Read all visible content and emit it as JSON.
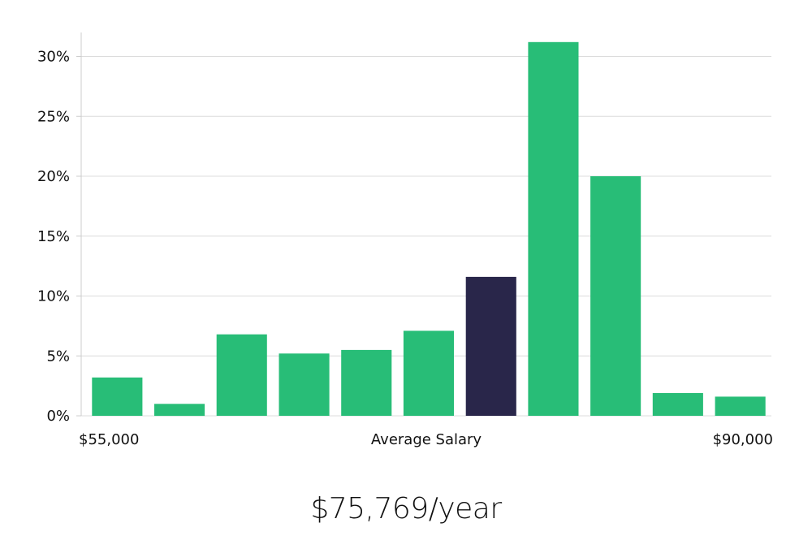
{
  "chart_data": {
    "type": "bar",
    "xlabel": "Average Salary",
    "x_range_labels": {
      "min": "$55,000",
      "max": "$90,000"
    },
    "ylabel": "",
    "ylim": [
      0,
      32
    ],
    "y_ticks": [
      0,
      5,
      10,
      15,
      20,
      25,
      30
    ],
    "y_tick_suffix": "%",
    "grid": true,
    "values": [
      3.2,
      1.0,
      6.8,
      5.2,
      5.5,
      7.1,
      11.6,
      31.2,
      20.0,
      1.9,
      1.6
    ],
    "highlight_index": 6,
    "colors": {
      "bar": "#28bd77",
      "highlight": "#29264a",
      "grid": "#dcdcdc",
      "axis": "#cccccc"
    }
  },
  "summary": {
    "salary": "$75,769/year"
  }
}
